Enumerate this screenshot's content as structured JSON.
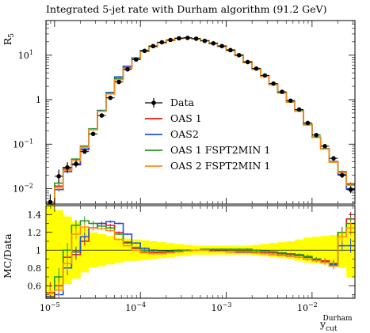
{
  "chart_data": {
    "type": "line",
    "title": "Integrated 5-jet rate with Durham algorithm (91.2 GeV)",
    "ylabel": "R",
    "ylabel_sub": "5",
    "xlabel": "y",
    "xlabel_sup": "Durham",
    "xlabel_sub": "cut",
    "ratio_ylabel": "MC/Data",
    "x_scale": "log",
    "y_scale": "log",
    "xlim": [
      7.94e-06,
      0.0316
    ],
    "ylim": [
      0.0045,
      60
    ],
    "ratio_ylim": [
      0.46,
      1.5
    ],
    "x_ticks": [
      {
        "value": 1e-05,
        "base": "10",
        "exp": "−5"
      },
      {
        "value": 0.0001,
        "base": "10",
        "exp": "−4"
      },
      {
        "value": 0.001,
        "base": "10",
        "exp": "−3"
      },
      {
        "value": 0.01,
        "base": "10",
        "exp": "−2"
      }
    ],
    "y_ticks": [
      {
        "value": 0.01,
        "base": "10",
        "exp": "−2"
      },
      {
        "value": 0.1,
        "base": "10",
        "exp": "−1"
      },
      {
        "value": 1,
        "base": "1",
        "exp": ""
      },
      {
        "value": 10,
        "base": "10",
        "exp": "1"
      }
    ],
    "ratio_ticks": [
      "0.6",
      "0.8",
      "1",
      "1.2",
      "1.4"
    ],
    "ratio_tick_values": [
      0.6,
      0.8,
      1.0,
      1.2,
      1.4
    ],
    "legend_position": "center-right",
    "bin_edges": [
      7.94e-06,
      1e-05,
      1.26e-05,
      1.58e-05,
      2e-05,
      2.51e-05,
      3.16e-05,
      3.98e-05,
      5.01e-05,
      6.31e-05,
      7.94e-05,
      0.0001,
      0.000126,
      0.000158,
      0.0002,
      0.000251,
      0.000316,
      0.000398,
      0.000501,
      0.000631,
      0.000794,
      0.001,
      0.00126,
      0.00158,
      0.002,
      0.00251,
      0.00316,
      0.00398,
      0.00501,
      0.00631,
      0.00794,
      0.01,
      0.0126,
      0.0158,
      0.02,
      0.0251,
      0.0316
    ],
    "data": {
      "name": "Data",
      "color": "#000000",
      "x": [
        8.9e-06,
        1.12e-05,
        1.41e-05,
        1.78e-05,
        2.24e-05,
        2.82e-05,
        3.55e-05,
        4.47e-05,
        5.62e-05,
        7.08e-05,
        8.91e-05,
        0.000112,
        0.000141,
        0.000178,
        0.000224,
        0.000282,
        0.000355,
        0.000447,
        0.000562,
        0.000708,
        0.000891,
        0.00112,
        0.00141,
        0.00178,
        0.00224,
        0.00282,
        0.00355,
        0.00447,
        0.00562,
        0.00708,
        0.00891,
        0.0112,
        0.0141,
        0.0178,
        0.0224,
        0.0282
      ],
      "y": [
        0.005,
        0.019,
        0.03,
        0.036,
        0.068,
        0.17,
        0.44,
        1.1,
        2.5,
        4.8,
        8.0,
        12.5,
        16.0,
        19.5,
        22.0,
        24.0,
        24.5,
        23.5,
        21.0,
        18.5,
        16.0,
        13.0,
        10.0,
        7.0,
        5.0,
        3.5,
        2.3,
        1.5,
        0.95,
        0.6,
        0.3,
        0.16,
        0.09,
        0.048,
        0.02,
        0.0095
      ],
      "y_err_factor": [
        1.5,
        1.4,
        1.3,
        1.2,
        1.12,
        1.08,
        1.06,
        1.06,
        1.06,
        1.06,
        1.05,
        1.04,
        1.04,
        1.04,
        1.04,
        1.04,
        1.04,
        1.04,
        1.04,
        1.04,
        1.04,
        1.04,
        1.04,
        1.04,
        1.04,
        1.04,
        1.05,
        1.05,
        1.05,
        1.06,
        1.08,
        1.08,
        1.1,
        1.12,
        1.15,
        1.2
      ]
    },
    "band": {
      "color": "#ffff00",
      "lo": [
        0.46,
        0.55,
        0.62,
        0.68,
        0.75,
        0.8,
        0.82,
        0.84,
        0.86,
        0.88,
        0.88,
        0.89,
        0.9,
        0.91,
        0.92,
        0.93,
        0.94,
        0.95,
        0.95,
        0.95,
        0.95,
        0.95,
        0.95,
        0.95,
        0.94,
        0.93,
        0.92,
        0.91,
        0.9,
        0.88,
        0.86,
        0.85,
        0.84,
        0.83,
        0.8,
        0.7
      ],
      "hi": [
        1.5,
        1.45,
        1.38,
        1.32,
        1.25,
        1.2,
        1.18,
        1.16,
        1.14,
        1.13,
        1.12,
        1.11,
        1.1,
        1.09,
        1.08,
        1.07,
        1.06,
        1.05,
        1.05,
        1.05,
        1.05,
        1.05,
        1.05,
        1.05,
        1.06,
        1.07,
        1.08,
        1.09,
        1.1,
        1.12,
        1.14,
        1.15,
        1.16,
        1.17,
        1.2,
        1.3
      ]
    },
    "series": [
      {
        "name": "OAS 1",
        "color": "#e31a1c",
        "ratio": [
          0.52,
          0.6,
          0.92,
          0.95,
          1.1,
          1.25,
          1.3,
          1.28,
          1.2,
          1.09,
          1.02,
          0.98,
          0.97,
          0.97,
          0.98,
          0.99,
          1.0,
          1.0,
          1.0,
          0.99,
          0.99,
          0.98,
          0.98,
          0.98,
          0.98,
          0.97,
          0.97,
          0.96,
          0.95,
          0.94,
          0.92,
          0.9,
          0.88,
          0.85,
          1.2,
          1.35
        ],
        "ratio_err": [
          0.12,
          0.1,
          0.08,
          0.06,
          0.05,
          0.03,
          0.02,
          0.015,
          0.01,
          0.01,
          0.01,
          0.01,
          0.01,
          0.01,
          0.01,
          0.01,
          0.01,
          0.01,
          0.01,
          0.01,
          0.01,
          0.01,
          0.01,
          0.01,
          0.01,
          0.01,
          0.01,
          0.01,
          0.01,
          0.015,
          0.02,
          0.02,
          0.03,
          0.04,
          0.06,
          0.08
        ]
      },
      {
        "name": "OAS2",
        "color": "#1f4fe0",
        "ratio": [
          0.48,
          0.5,
          0.8,
          0.98,
          1.15,
          1.25,
          1.3,
          1.32,
          1.3,
          1.18,
          1.08,
          1.02,
          1.0,
          0.99,
          0.99,
          1.0,
          1.0,
          1.0,
          1.0,
          0.99,
          0.99,
          0.98,
          0.98,
          0.98,
          0.97,
          0.96,
          0.95,
          0.94,
          0.93,
          0.92,
          0.9,
          0.89,
          0.87,
          0.84,
          1.05,
          1.05
        ],
        "ratio_err": [
          0.12,
          0.1,
          0.08,
          0.06,
          0.05,
          0.03,
          0.02,
          0.015,
          0.01,
          0.01,
          0.01,
          0.01,
          0.01,
          0.01,
          0.01,
          0.01,
          0.01,
          0.01,
          0.01,
          0.01,
          0.01,
          0.01,
          0.01,
          0.01,
          0.01,
          0.01,
          0.01,
          0.01,
          0.01,
          0.015,
          0.02,
          0.02,
          0.03,
          0.04,
          0.06,
          0.08
        ]
      },
      {
        "name": "OAS 1 FSPT2MIN 1",
        "color": "#1b9a1b",
        "ratio": [
          0.46,
          0.7,
          1.0,
          1.28,
          1.33,
          1.3,
          1.27,
          1.25,
          1.18,
          1.08,
          1.03,
          1.0,
          0.99,
          0.99,
          0.99,
          1.0,
          1.0,
          1.0,
          1.01,
          1.01,
          1.01,
          1.01,
          1.01,
          1.01,
          1.0,
          0.99,
          0.98,
          0.97,
          0.96,
          0.95,
          0.93,
          0.9,
          0.87,
          0.83,
          1.2,
          1.3
        ],
        "ratio_err": [
          0.12,
          0.1,
          0.08,
          0.06,
          0.05,
          0.03,
          0.02,
          0.015,
          0.01,
          0.01,
          0.01,
          0.01,
          0.01,
          0.01,
          0.01,
          0.01,
          0.01,
          0.01,
          0.01,
          0.01,
          0.01,
          0.01,
          0.01,
          0.01,
          0.01,
          0.01,
          0.01,
          0.01,
          0.01,
          0.015,
          0.02,
          0.02,
          0.03,
          0.04,
          0.06,
          0.08
        ]
      },
      {
        "name": "OAS 2 FSPT2MIN 1",
        "color": "#ff8c1a",
        "ratio": [
          0.47,
          0.55,
          0.85,
          1.18,
          1.26,
          1.25,
          1.24,
          1.22,
          1.12,
          1.05,
          1.0,
          0.97,
          0.96,
          0.96,
          0.97,
          0.98,
          0.99,
          1.0,
          1.0,
          0.99,
          0.99,
          0.98,
          0.97,
          0.97,
          0.97,
          0.96,
          0.95,
          0.94,
          0.93,
          0.92,
          0.9,
          0.88,
          0.86,
          0.82,
          1.15,
          1.25
        ],
        "ratio_err": [
          0.12,
          0.1,
          0.08,
          0.06,
          0.05,
          0.03,
          0.02,
          0.015,
          0.01,
          0.01,
          0.01,
          0.01,
          0.01,
          0.01,
          0.01,
          0.01,
          0.01,
          0.01,
          0.01,
          0.01,
          0.01,
          0.01,
          0.01,
          0.01,
          0.01,
          0.01,
          0.01,
          0.01,
          0.01,
          0.015,
          0.02,
          0.02,
          0.03,
          0.04,
          0.06,
          0.08
        ]
      }
    ]
  }
}
